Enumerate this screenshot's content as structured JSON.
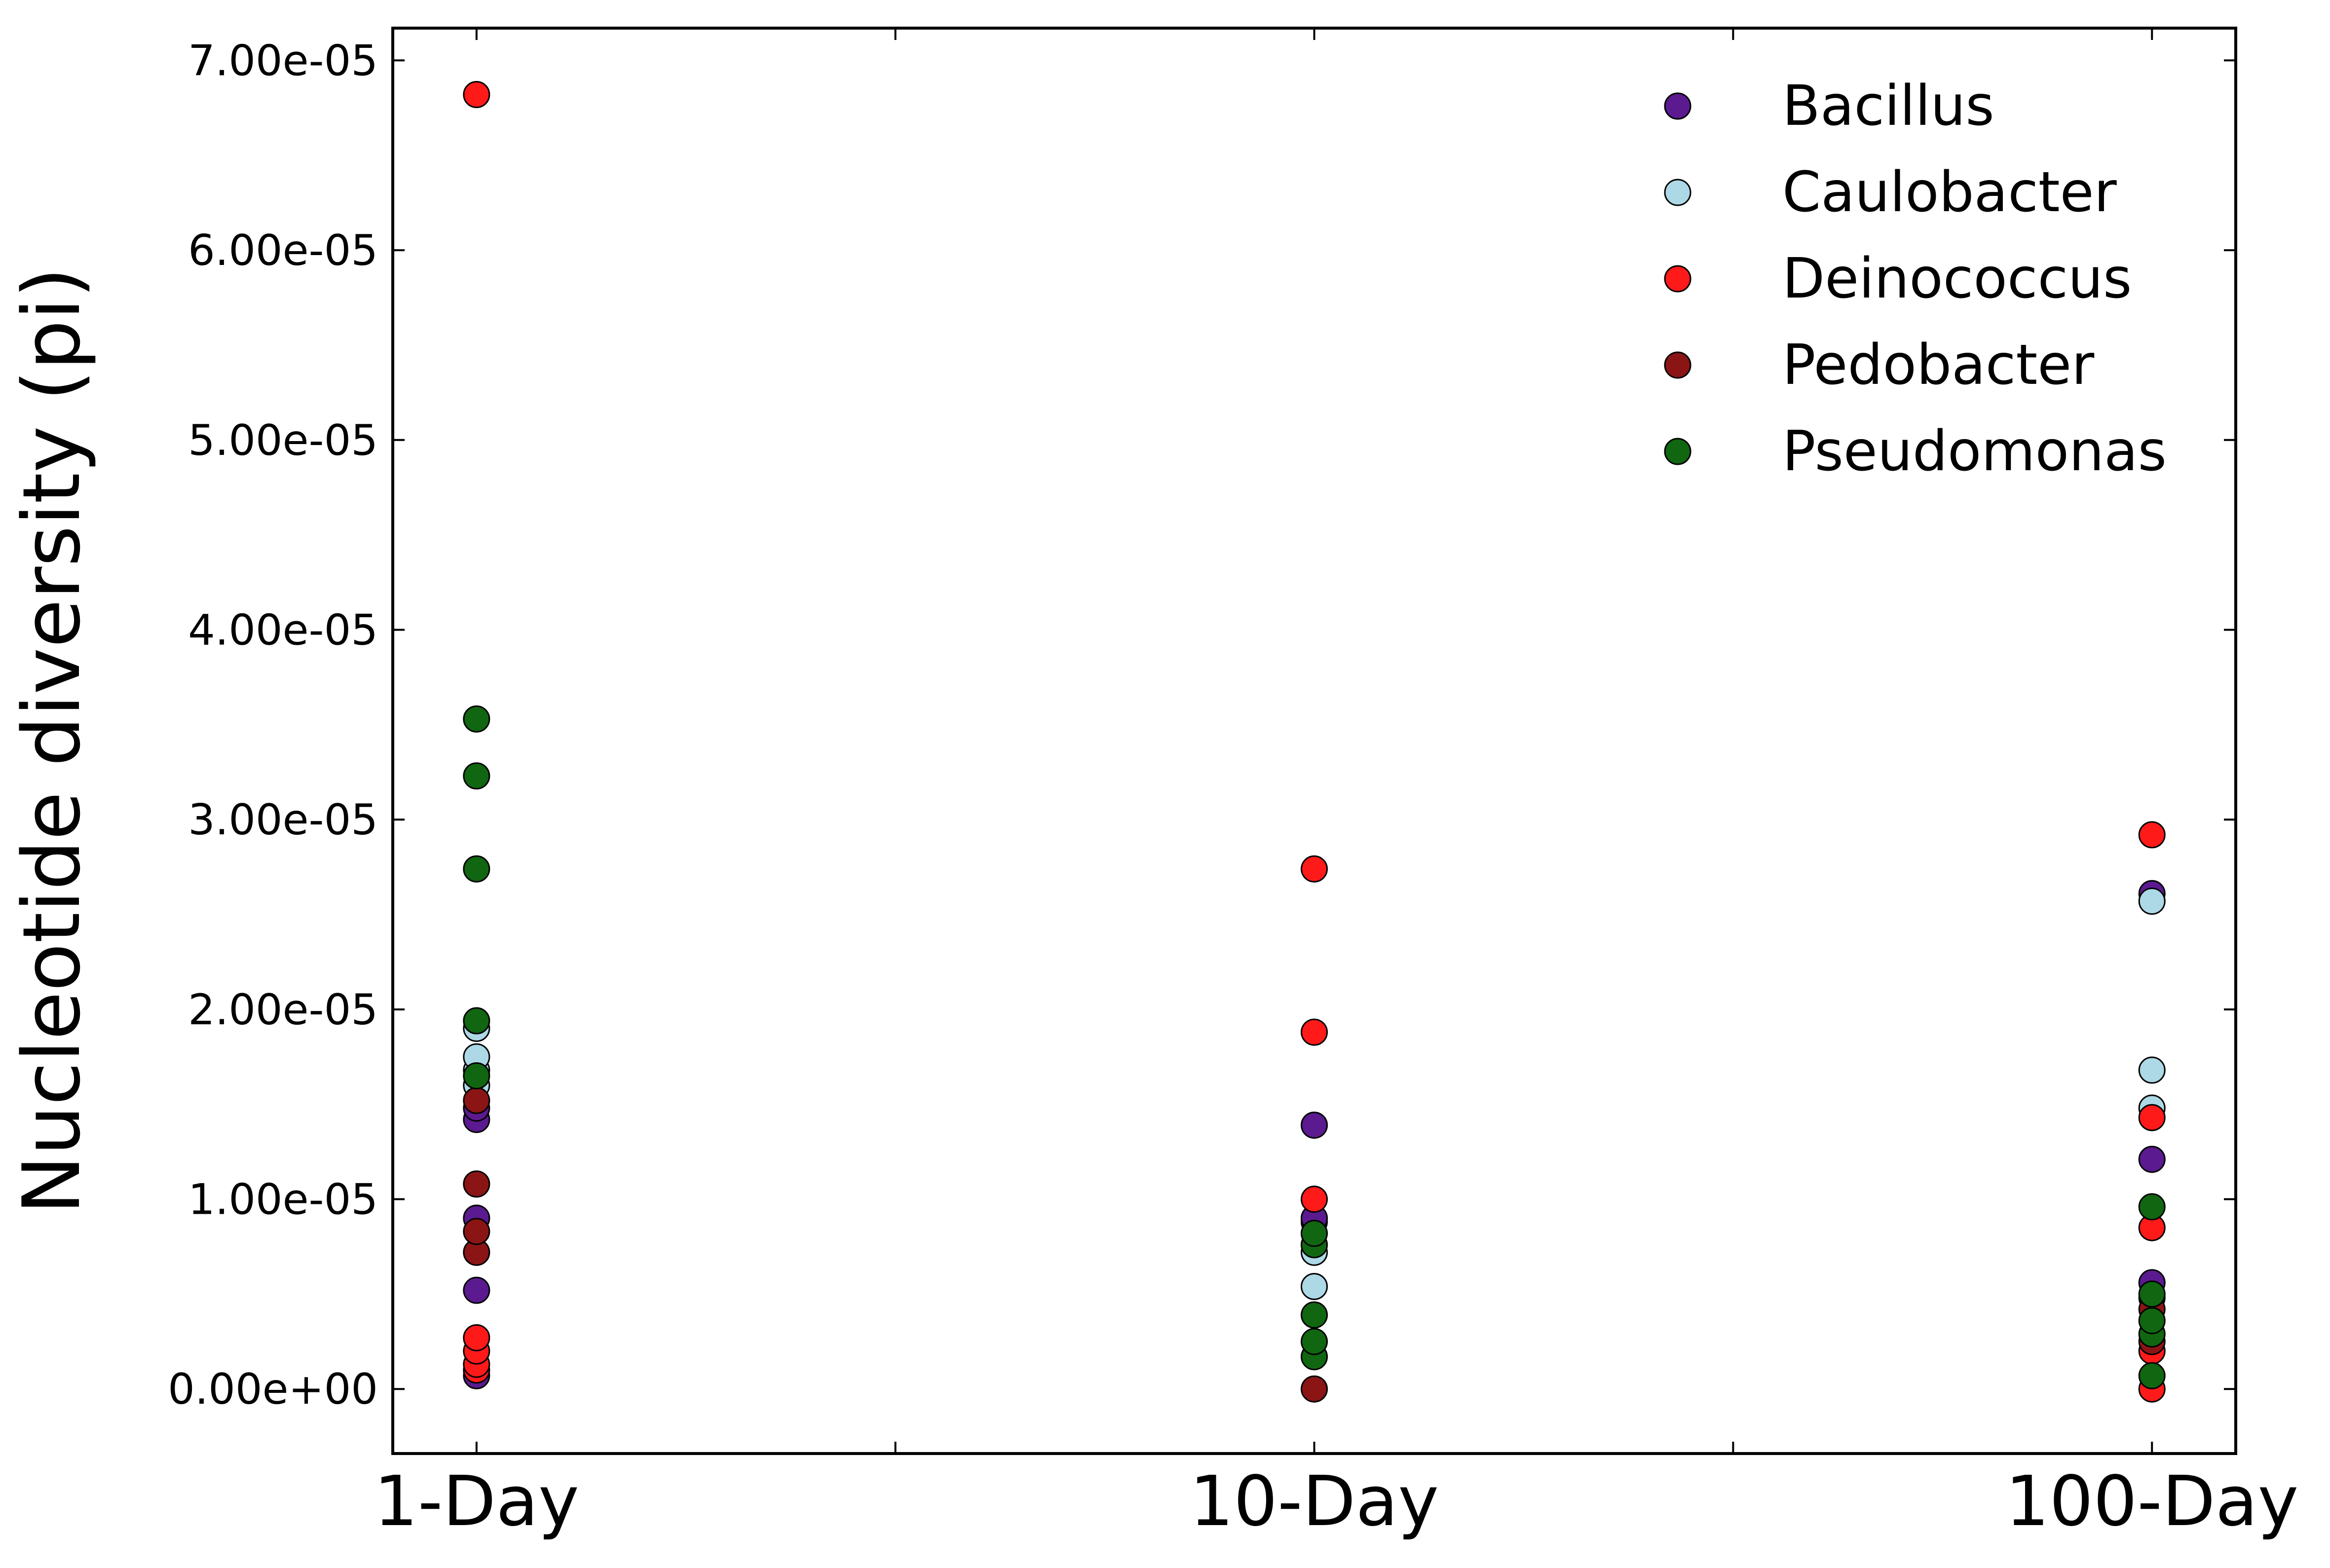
{
  "chart_data": {
    "type": "scatter",
    "xlabel": "",
    "ylabel": "Nucleotide diversity (pi)",
    "categories": [
      "1-Day",
      "10-Day",
      "100-Day"
    ],
    "x_ticks": [
      "1-Day",
      "10-Day",
      "100-Day"
    ],
    "y_ticks": [
      "0.00e+00",
      "1.00e-05",
      "2.00e-05",
      "3.00e-05",
      "4.00e-05",
      "5.00e-05",
      "6.00e-05",
      "7.00e-05"
    ],
    "ylim": [
      -3.4e-06,
      7.17e-05
    ],
    "grid": false,
    "legend_position": "top-right",
    "series": [
      {
        "name": "Bacillus",
        "color": "#5b1a8f",
        "points": [
          {
            "x": "1-Day",
            "y": 7e-07
          },
          {
            "x": "1-Day",
            "y": 5.2e-06
          },
          {
            "x": "1-Day",
            "y": 9e-06
          },
          {
            "x": "1-Day",
            "y": 1.42e-05
          },
          {
            "x": "1-Day",
            "y": 1.48e-05
          },
          {
            "x": "10-Day",
            "y": 8.8e-06
          },
          {
            "x": "10-Day",
            "y": 9e-06
          },
          {
            "x": "10-Day",
            "y": 1.39e-05
          },
          {
            "x": "100-Day",
            "y": 4.8e-06
          },
          {
            "x": "100-Day",
            "y": 5.6e-06
          },
          {
            "x": "100-Day",
            "y": 1.21e-05
          },
          {
            "x": "100-Day",
            "y": 2.61e-05
          }
        ]
      },
      {
        "name": "Caulobacter",
        "color": "#add8e6",
        "points": [
          {
            "x": "1-Day",
            "y": 1.6e-05
          },
          {
            "x": "1-Day",
            "y": 1.68e-05
          },
          {
            "x": "1-Day",
            "y": 1.75e-05
          },
          {
            "x": "1-Day",
            "y": 1.9e-05
          },
          {
            "x": "10-Day",
            "y": 5.4e-06
          },
          {
            "x": "10-Day",
            "y": 7.2e-06
          },
          {
            "x": "100-Day",
            "y": 1.48e-05
          },
          {
            "x": "100-Day",
            "y": 1.68e-05
          },
          {
            "x": "100-Day",
            "y": 2.57e-05
          }
        ]
      },
      {
        "name": "Deinococcus",
        "color": "#ff1a1a",
        "points": [
          {
            "x": "1-Day",
            "y": 1e-06
          },
          {
            "x": "1-Day",
            "y": 1.3e-06
          },
          {
            "x": "1-Day",
            "y": 2e-06
          },
          {
            "x": "1-Day",
            "y": 2.7e-06
          },
          {
            "x": "1-Day",
            "y": 6.82e-05
          },
          {
            "x": "10-Day",
            "y": 1e-05
          },
          {
            "x": "10-Day",
            "y": 1.88e-05
          },
          {
            "x": "10-Day",
            "y": 2.74e-05
          },
          {
            "x": "100-Day",
            "y": 0.0
          },
          {
            "x": "100-Day",
            "y": 2e-06
          },
          {
            "x": "100-Day",
            "y": 8.5e-06
          },
          {
            "x": "100-Day",
            "y": 1.43e-05
          },
          {
            "x": "100-Day",
            "y": 2.92e-05
          }
        ]
      },
      {
        "name": "Pedobacter",
        "color": "#8b1515",
        "points": [
          {
            "x": "1-Day",
            "y": 7.2e-06
          },
          {
            "x": "1-Day",
            "y": 8.3e-06
          },
          {
            "x": "1-Day",
            "y": 1.08e-05
          },
          {
            "x": "1-Day",
            "y": 1.52e-05
          },
          {
            "x": "10-Day",
            "y": 0.0
          },
          {
            "x": "100-Day",
            "y": 2.5e-06
          },
          {
            "x": "100-Day",
            "y": 4.2e-06
          }
        ]
      },
      {
        "name": "Pseudomonas",
        "color": "#116611",
        "points": [
          {
            "x": "1-Day",
            "y": 1.65e-05
          },
          {
            "x": "1-Day",
            "y": 1.94e-05
          },
          {
            "x": "1-Day",
            "y": 2.74e-05
          },
          {
            "x": "1-Day",
            "y": 3.23e-05
          },
          {
            "x": "1-Day",
            "y": 3.53e-05
          },
          {
            "x": "10-Day",
            "y": 1.7e-06
          },
          {
            "x": "10-Day",
            "y": 2.5e-06
          },
          {
            "x": "10-Day",
            "y": 3.9e-06
          },
          {
            "x": "10-Day",
            "y": 7.6e-06
          },
          {
            "x": "10-Day",
            "y": 8.2e-06
          },
          {
            "x": "100-Day",
            "y": 7e-07
          },
          {
            "x": "100-Day",
            "y": 2.9e-06
          },
          {
            "x": "100-Day",
            "y": 3.6e-06
          },
          {
            "x": "100-Day",
            "y": 5e-06
          },
          {
            "x": "100-Day",
            "y": 9.6e-06
          }
        ]
      }
    ]
  }
}
